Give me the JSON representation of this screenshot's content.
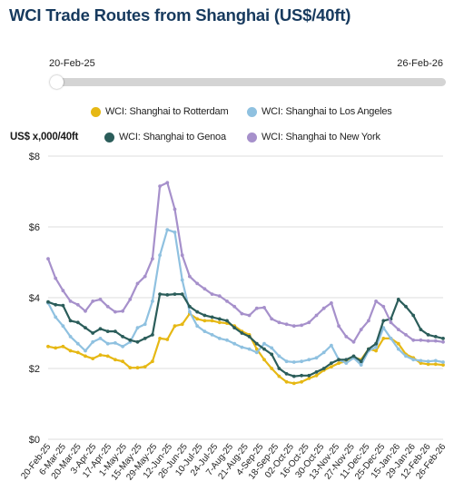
{
  "chart_data": {
    "type": "line",
    "title": "WCI Trade Routes from Shanghai (US$/40ft)",
    "ylabel": "US$ x,000/40ft",
    "xlabel": "",
    "range_start": "20-Feb-25",
    "range_end": "26-Feb-26",
    "ylim": [
      0,
      8
    ],
    "y_ticks": [
      "$0",
      "$2",
      "$4",
      "$6",
      "$8"
    ],
    "y_tick_values": [
      0,
      2,
      4,
      6,
      8
    ],
    "grid": true,
    "legend_position": "top",
    "x_tick_labels": [
      "20-Feb-25",
      "6-Mar-25",
      "20-Mar-25",
      "3-Apr-25",
      "17-Apr-25",
      "1-May-25",
      "15-May-25",
      "29-May-25",
      "12-Jun-25",
      "26-Jun-25",
      "10-Jul-25",
      "24-Jul-25",
      "7-Aug-25",
      "21-Aug-25",
      "4-Sep-25",
      "18-Sep-25",
      "02-Oct-25",
      "16-Oct-25",
      "30-Oct-25",
      "13-Nov-25",
      "27-Nov-25",
      "11-Dec-25",
      "25-Dec-25",
      "15-Jan-26",
      "29-Jan-26",
      "12-Feb-26",
      "26-Feb-26"
    ],
    "x": [
      "20-Feb-25",
      "27-Feb-25",
      "6-Mar-25",
      "13-Mar-25",
      "20-Mar-25",
      "27-Mar-25",
      "3-Apr-25",
      "10-Apr-25",
      "17-Apr-25",
      "24-Apr-25",
      "1-May-25",
      "8-May-25",
      "15-May-25",
      "22-May-25",
      "29-May-25",
      "5-Jun-25",
      "12-Jun-25",
      "19-Jun-25",
      "26-Jun-25",
      "3-Jul-25",
      "10-Jul-25",
      "17-Jul-25",
      "24-Jul-25",
      "31-Jul-25",
      "7-Aug-25",
      "14-Aug-25",
      "21-Aug-25",
      "28-Aug-25",
      "4-Sep-25",
      "11-Sep-25",
      "18-Sep-25",
      "25-Sep-25",
      "02-Oct-25",
      "9-Oct-25",
      "16-Oct-25",
      "23-Oct-25",
      "30-Oct-25",
      "6-Nov-25",
      "13-Nov-25",
      "20-Nov-25",
      "27-Nov-25",
      "4-Dec-25",
      "11-Dec-25",
      "18-Dec-25",
      "25-Dec-25",
      "1-Jan-26",
      "8-Jan-26",
      "15-Jan-26",
      "22-Jan-26",
      "29-Jan-26",
      "5-Feb-26",
      "12-Feb-26",
      "19-Feb-26",
      "26-Feb-26"
    ],
    "series": [
      {
        "name": "WCI: Shanghai to Rotterdam",
        "color": "#e6b814",
        "values": [
          2.62,
          2.58,
          2.62,
          2.5,
          2.45,
          2.35,
          2.28,
          2.38,
          2.35,
          2.25,
          2.2,
          2.02,
          2.02,
          2.05,
          2.2,
          2.85,
          2.82,
          3.2,
          3.25,
          3.55,
          3.4,
          3.35,
          3.35,
          3.3,
          3.28,
          3.2,
          3.05,
          2.95,
          2.55,
          2.25,
          2.0,
          1.78,
          1.62,
          1.58,
          1.62,
          1.72,
          1.8,
          1.95,
          2.05,
          2.15,
          2.2,
          2.32,
          2.25,
          2.55,
          2.5,
          2.85,
          2.85,
          2.7,
          2.4,
          2.3,
          2.15,
          2.12,
          2.12,
          2.1
        ]
      },
      {
        "name": "WCI: Shanghai to Los Angeles",
        "color": "#8fc1e0",
        "values": [
          3.85,
          3.45,
          3.2,
          2.9,
          2.7,
          2.5,
          2.75,
          2.85,
          2.7,
          2.72,
          2.62,
          2.75,
          3.15,
          3.25,
          3.9,
          5.2,
          5.92,
          5.85,
          4.5,
          3.6,
          3.2,
          3.05,
          2.95,
          2.85,
          2.8,
          2.7,
          2.6,
          2.55,
          2.45,
          2.7,
          2.58,
          2.35,
          2.2,
          2.18,
          2.2,
          2.25,
          2.3,
          2.45,
          2.65,
          2.25,
          2.15,
          2.3,
          2.1,
          2.5,
          2.6,
          3.15,
          2.85,
          2.55,
          2.35,
          2.25,
          2.22,
          2.2,
          2.22,
          2.18
        ]
      },
      {
        "name": "WCI: Shanghai to Genoa",
        "color": "#2b5d5a",
        "values": [
          3.88,
          3.8,
          3.78,
          3.35,
          3.3,
          3.15,
          3.0,
          3.12,
          3.05,
          3.05,
          2.9,
          2.8,
          2.75,
          2.85,
          2.95,
          4.1,
          4.08,
          4.1,
          4.1,
          3.75,
          3.6,
          3.5,
          3.45,
          3.4,
          3.35,
          3.15,
          3.0,
          2.9,
          2.7,
          2.55,
          2.4,
          2.0,
          1.85,
          1.78,
          1.8,
          1.8,
          1.9,
          2.0,
          2.15,
          2.25,
          2.25,
          2.35,
          2.2,
          2.55,
          2.7,
          3.35,
          3.4,
          3.95,
          3.75,
          3.5,
          3.1,
          2.95,
          2.9,
          2.85
        ]
      },
      {
        "name": "WCI: Shanghai to New York",
        "color": "#a690cb",
        "values": [
          5.1,
          4.55,
          4.2,
          3.9,
          3.8,
          3.62,
          3.9,
          3.95,
          3.75,
          3.6,
          3.62,
          3.95,
          4.4,
          4.6,
          5.1,
          7.15,
          7.25,
          6.5,
          5.2,
          4.6,
          4.4,
          4.25,
          4.1,
          4.05,
          3.9,
          3.75,
          3.55,
          3.5,
          3.7,
          3.72,
          3.4,
          3.3,
          3.25,
          3.2,
          3.22,
          3.3,
          3.5,
          3.7,
          3.85,
          3.2,
          2.9,
          2.75,
          3.1,
          3.35,
          3.9,
          3.75,
          3.3,
          3.1,
          2.95,
          2.8,
          2.8,
          2.78,
          2.78,
          2.75
        ]
      }
    ]
  }
}
